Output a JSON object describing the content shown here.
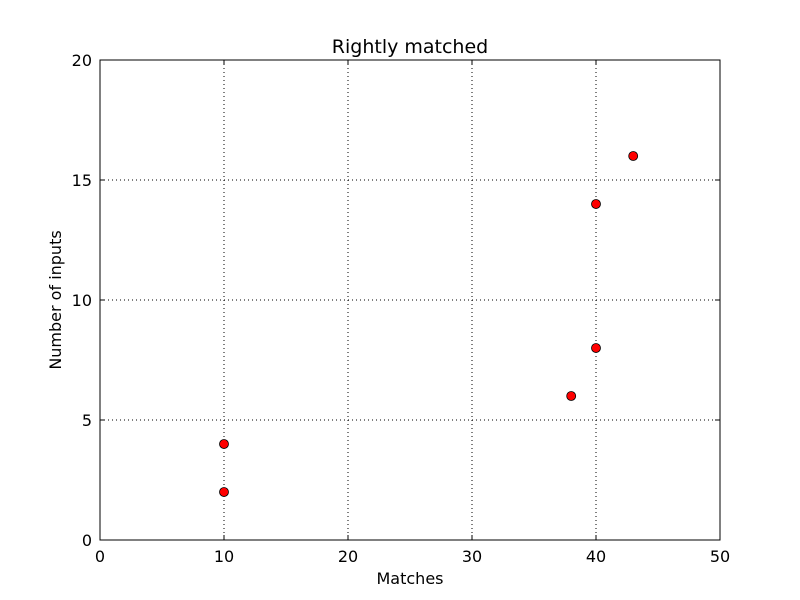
{
  "chart_data": {
    "type": "scatter",
    "title": "Rightly matched",
    "xlabel": "Matches",
    "ylabel": "Number of inputs",
    "xlim": [
      0,
      50
    ],
    "ylim": [
      0,
      20
    ],
    "xticks": [
      0,
      10,
      20,
      30,
      40,
      50
    ],
    "yticks": [
      0,
      5,
      10,
      15,
      20
    ],
    "xtick_labels": [
      "0",
      "10",
      "20",
      "30",
      "40",
      "50"
    ],
    "ytick_labels": [
      "0",
      "5",
      "10",
      "15",
      "20"
    ],
    "grid": true,
    "marker_color": "#ff0000",
    "marker_edge_color": "#000000",
    "points": [
      {
        "x": 10,
        "y": 2
      },
      {
        "x": 10,
        "y": 4
      },
      {
        "x": 38,
        "y": 6
      },
      {
        "x": 40,
        "y": 8
      },
      {
        "x": 40,
        "y": 14
      },
      {
        "x": 43,
        "y": 16
      }
    ]
  }
}
